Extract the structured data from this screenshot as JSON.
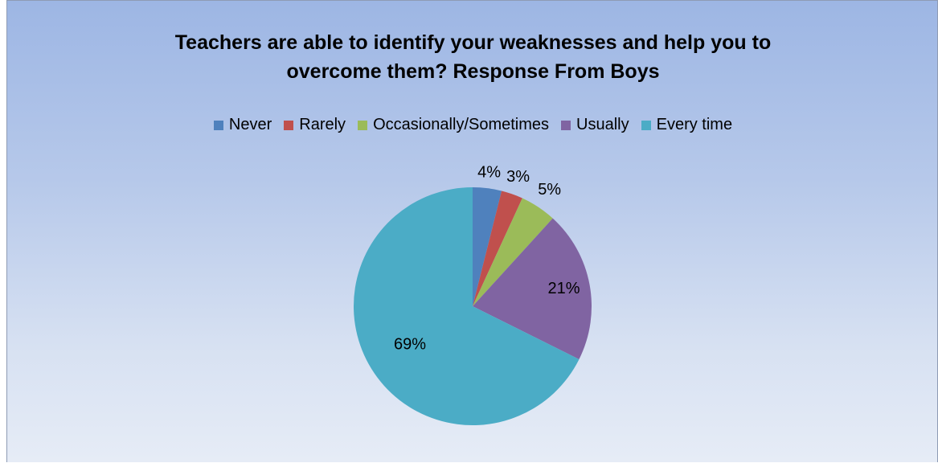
{
  "chart_data": {
    "type": "pie",
    "title": "Teachers are able to identify your weaknesses and help you to\novercome them?  Response From Boys",
    "categories": [
      "Never",
      "Rarely",
      "Occasionally/Sometimes",
      "Usually",
      "Every time"
    ],
    "values": [
      4,
      3,
      5,
      21,
      69
    ],
    "data_labels": [
      "4%",
      "3%",
      "5%",
      "21%",
      "69%"
    ],
    "colors": [
      "#4f81bd",
      "#c0504d",
      "#9bbb59",
      "#8064a2",
      "#4bacc6"
    ],
    "legend_position": "top",
    "start_angle": "12 o'clock",
    "direction": "clockwise"
  }
}
